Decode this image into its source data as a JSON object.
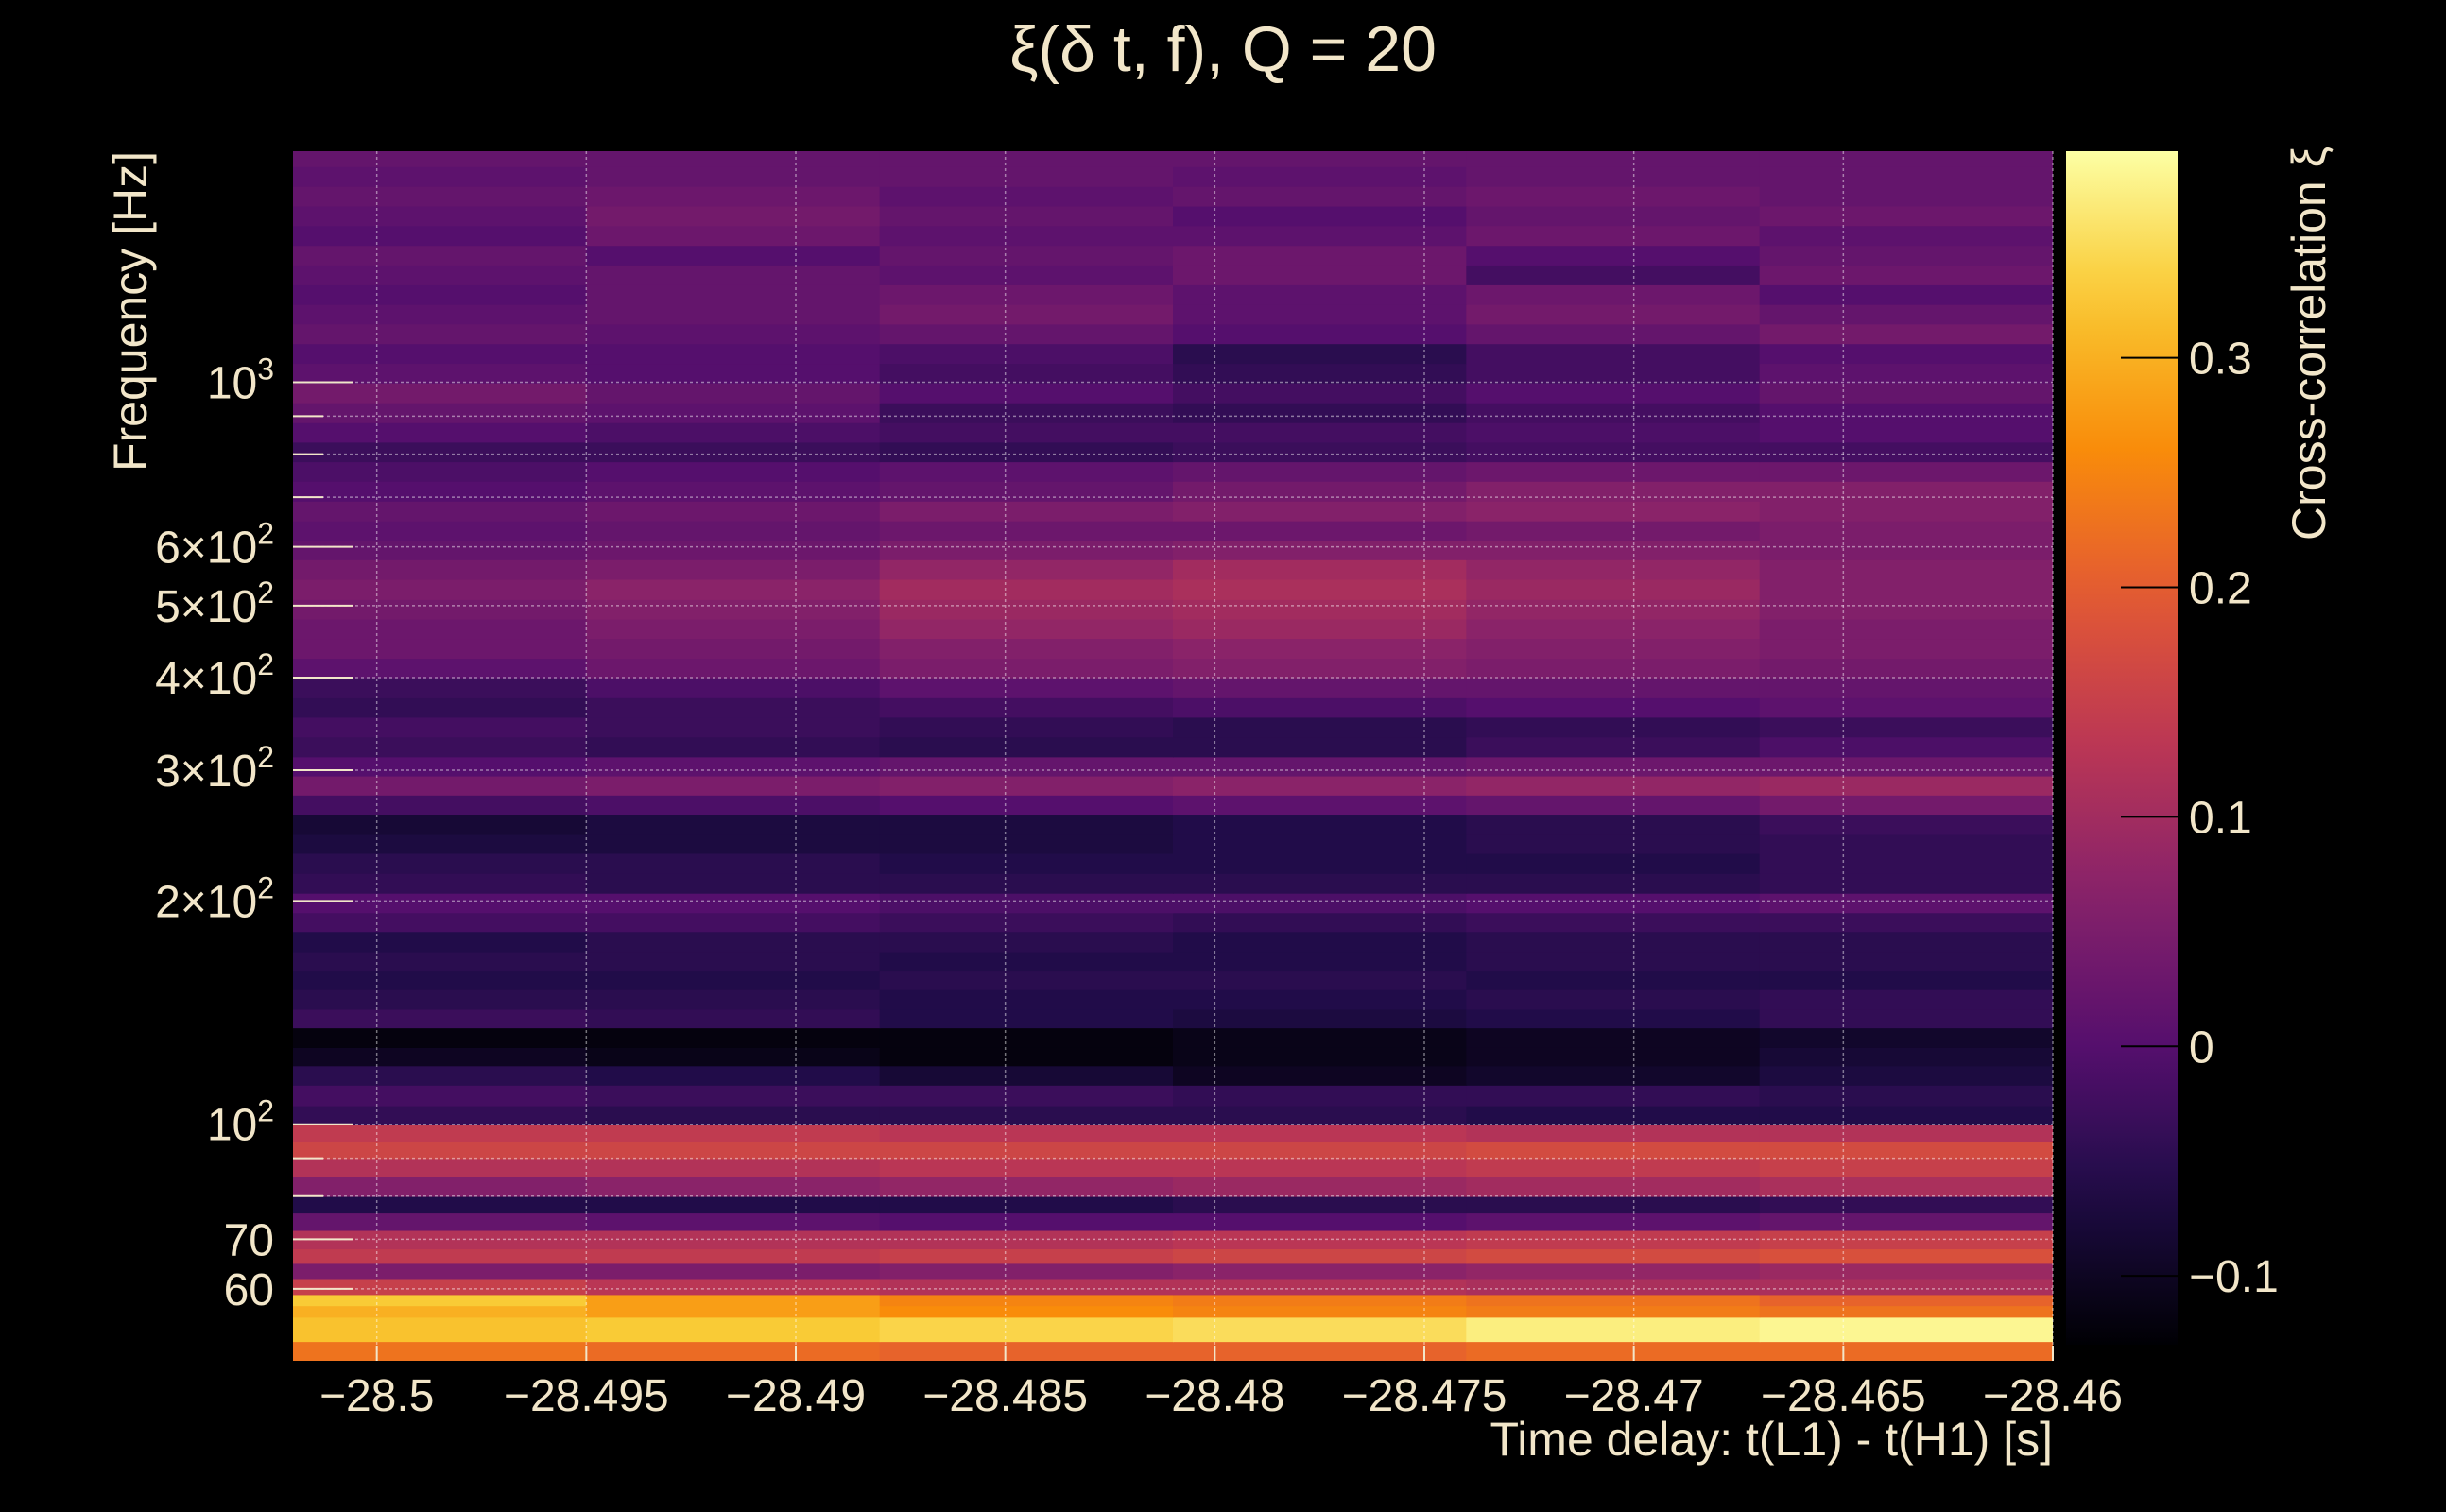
{
  "chart_data": {
    "type": "heatmap",
    "title": "ξ(δ t, f), Q = 20",
    "xlabel": "Time delay: t(L1) - t(H1) [s]",
    "ylabel": "Frequency [Hz]",
    "colorbar_label": "Cross-correlation ξ",
    "xlim": [
      -28.502,
      -28.46
    ],
    "ylim": [
      48,
      2048
    ],
    "yscale": "log",
    "grid": true,
    "x_ticks": [
      {
        "value": -28.5,
        "label": "−28.5"
      },
      {
        "value": -28.495,
        "label": "−28.495"
      },
      {
        "value": -28.49,
        "label": "−28.49"
      },
      {
        "value": -28.485,
        "label": "−28.485"
      },
      {
        "value": -28.48,
        "label": "−28.48"
      },
      {
        "value": -28.475,
        "label": "−28.475"
      },
      {
        "value": -28.47,
        "label": "−28.47"
      },
      {
        "value": -28.465,
        "label": "−28.465"
      },
      {
        "value": -28.46,
        "label": "−28.46"
      }
    ],
    "y_ticks": [
      {
        "value": 60,
        "label": "60"
      },
      {
        "value": 70,
        "label": "70"
      },
      {
        "value": 100,
        "label": "10",
        "sup": "2"
      },
      {
        "value": 200,
        "label": "2×10",
        "sup": "2"
      },
      {
        "value": 300,
        "label": "3×10",
        "sup": "2"
      },
      {
        "value": 400,
        "label": "4×10",
        "sup": "2"
      },
      {
        "value": 500,
        "label": "5×10",
        "sup": "2"
      },
      {
        "value": 600,
        "label": "6×10",
        "sup": "2"
      },
      {
        "value": 1000,
        "label": "10",
        "sup": "3"
      }
    ],
    "y_minor_ticks": [
      80,
      90,
      700,
      800,
      900
    ],
    "color_ticks": [
      {
        "value": -0.1,
        "label": "−0.1"
      },
      {
        "value": 0,
        "label": "0"
      },
      {
        "value": 0.1,
        "label": "0.1"
      },
      {
        "value": 0.2,
        "label": "0.2"
      },
      {
        "value": 0.3,
        "label": "0.3"
      }
    ],
    "clim": [
      -0.13,
      0.39
    ],
    "colormap": "inferno",
    "bands": [
      {
        "f_low": 48,
        "f_high": 51,
        "values": [
          0.23,
          0.22,
          0.21,
          0.21,
          0.22,
          0.22
        ]
      },
      {
        "f_low": 51,
        "f_high": 55,
        "values": [
          0.32,
          0.33,
          0.34,
          0.35,
          0.37,
          0.38
        ]
      },
      {
        "f_low": 55,
        "f_high": 57,
        "values": [
          0.3,
          0.28,
          0.26,
          0.25,
          0.24,
          0.23
        ]
      },
      {
        "f_low": 57,
        "f_high": 59,
        "values": [
          0.33,
          0.28,
          0.25,
          0.24,
          0.23,
          0.21
        ]
      },
      {
        "f_low": 59,
        "f_high": 62,
        "values": [
          0.15,
          0.13,
          0.12,
          0.12,
          0.11,
          0.11
        ]
      },
      {
        "f_low": 62,
        "f_high": 65,
        "values": [
          0.05,
          0.05,
          0.06,
          0.07,
          0.08,
          0.09
        ]
      },
      {
        "f_low": 65,
        "f_high": 68,
        "values": [
          0.14,
          0.14,
          0.15,
          0.16,
          0.17,
          0.18
        ]
      },
      {
        "f_low": 68,
        "f_high": 72,
        "values": [
          0.12,
          0.12,
          0.12,
          0.13,
          0.14,
          0.15
        ]
      },
      {
        "f_low": 72,
        "f_high": 76,
        "values": [
          0.02,
          0.01,
          0.0,
          0.0,
          0.01,
          0.02
        ]
      },
      {
        "f_low": 76,
        "f_high": 80,
        "values": [
          -0.06,
          -0.06,
          -0.06,
          -0.05,
          -0.05,
          -0.04
        ]
      },
      {
        "f_low": 80,
        "f_high": 85,
        "values": [
          0.06,
          0.07,
          0.08,
          0.09,
          0.1,
          0.11
        ]
      },
      {
        "f_low": 85,
        "f_high": 90,
        "values": [
          0.12,
          0.12,
          0.13,
          0.13,
          0.14,
          0.15
        ]
      },
      {
        "f_low": 90,
        "f_high": 95,
        "values": [
          0.16,
          0.16,
          0.16,
          0.16,
          0.17,
          0.17
        ]
      },
      {
        "f_low": 95,
        "f_high": 100,
        "values": [
          0.14,
          0.14,
          0.13,
          0.13,
          0.12,
          0.12
        ]
      },
      {
        "f_low": 100,
        "f_high": 106,
        "values": [
          -0.04,
          -0.05,
          -0.05,
          -0.05,
          -0.06,
          -0.06
        ]
      },
      {
        "f_low": 106,
        "f_high": 113,
        "values": [
          -0.02,
          -0.03,
          -0.03,
          -0.04,
          -0.04,
          -0.05
        ]
      },
      {
        "f_low": 113,
        "f_high": 120,
        "values": [
          -0.05,
          -0.06,
          -0.08,
          -0.1,
          -0.09,
          -0.07
        ]
      },
      {
        "f_low": 120,
        "f_high": 127,
        "values": [
          -0.1,
          -0.11,
          -0.12,
          -0.11,
          -0.1,
          -0.08
        ]
      },
      {
        "f_low": 127,
        "f_high": 135,
        "values": [
          -0.12,
          -0.12,
          -0.12,
          -0.11,
          -0.1,
          -0.09
        ]
      },
      {
        "f_low": 135,
        "f_high": 143,
        "values": [
          -0.03,
          -0.04,
          -0.06,
          -0.07,
          -0.06,
          -0.04
        ]
      },
      {
        "f_low": 143,
        "f_high": 152,
        "values": [
          -0.05,
          -0.05,
          -0.06,
          -0.06,
          -0.05,
          -0.04
        ]
      },
      {
        "f_low": 152,
        "f_high": 161,
        "values": [
          -0.06,
          -0.06,
          -0.05,
          -0.05,
          -0.06,
          -0.06
        ]
      },
      {
        "f_low": 161,
        "f_high": 171,
        "values": [
          -0.05,
          -0.05,
          -0.06,
          -0.06,
          -0.05,
          -0.05
        ]
      },
      {
        "f_low": 171,
        "f_high": 182,
        "values": [
          -0.06,
          -0.05,
          -0.05,
          -0.06,
          -0.05,
          -0.05
        ]
      },
      {
        "f_low": 182,
        "f_high": 193,
        "values": [
          -0.02,
          -0.02,
          -0.03,
          -0.04,
          -0.03,
          -0.03
        ]
      },
      {
        "f_low": 193,
        "f_high": 205,
        "values": [
          0.0,
          0.0,
          -0.01,
          -0.01,
          0.0,
          0.01
        ]
      },
      {
        "f_low": 205,
        "f_high": 218,
        "values": [
          -0.04,
          -0.05,
          -0.05,
          -0.05,
          -0.05,
          -0.04
        ]
      },
      {
        "f_low": 218,
        "f_high": 232,
        "values": [
          -0.05,
          -0.05,
          -0.06,
          -0.06,
          -0.06,
          -0.04
        ]
      },
      {
        "f_low": 232,
        "f_high": 246,
        "values": [
          -0.07,
          -0.07,
          -0.07,
          -0.06,
          -0.05,
          -0.04
        ]
      },
      {
        "f_low": 246,
        "f_high": 262,
        "values": [
          -0.08,
          -0.07,
          -0.07,
          -0.06,
          -0.05,
          -0.03
        ]
      },
      {
        "f_low": 262,
        "f_high": 278,
        "values": [
          -0.02,
          -0.01,
          0.0,
          0.01,
          0.02,
          0.04
        ]
      },
      {
        "f_low": 278,
        "f_high": 295,
        "values": [
          0.04,
          0.05,
          0.06,
          0.07,
          0.08,
          0.09
        ]
      },
      {
        "f_low": 295,
        "f_high": 313,
        "values": [
          0.0,
          0.01,
          0.02,
          0.02,
          0.03,
          0.03
        ]
      },
      {
        "f_low": 313,
        "f_high": 333,
        "values": [
          -0.03,
          -0.04,
          -0.05,
          -0.05,
          -0.03,
          -0.01
        ]
      },
      {
        "f_low": 333,
        "f_high": 354,
        "values": [
          -0.02,
          -0.03,
          -0.04,
          -0.05,
          -0.04,
          -0.03
        ]
      },
      {
        "f_low": 354,
        "f_high": 376,
        "values": [
          -0.04,
          -0.03,
          -0.02,
          -0.01,
          0.0,
          0.01
        ]
      },
      {
        "f_low": 376,
        "f_high": 400,
        "values": [
          -0.03,
          -0.01,
          0.01,
          0.02,
          0.02,
          0.02
        ]
      },
      {
        "f_low": 400,
        "f_high": 425,
        "values": [
          0.01,
          0.03,
          0.05,
          0.06,
          0.05,
          0.04
        ]
      },
      {
        "f_low": 425,
        "f_high": 452,
        "values": [
          0.03,
          0.04,
          0.06,
          0.07,
          0.06,
          0.05
        ]
      },
      {
        "f_low": 452,
        "f_high": 480,
        "values": [
          0.03,
          0.05,
          0.08,
          0.09,
          0.07,
          0.05
        ]
      },
      {
        "f_low": 480,
        "f_high": 510,
        "values": [
          0.04,
          0.06,
          0.09,
          0.1,
          0.08,
          0.06
        ]
      },
      {
        "f_low": 510,
        "f_high": 543,
        "values": [
          0.05,
          0.07,
          0.1,
          0.11,
          0.09,
          0.06
        ]
      },
      {
        "f_low": 543,
        "f_high": 577,
        "values": [
          0.04,
          0.05,
          0.08,
          0.1,
          0.08,
          0.06
        ]
      },
      {
        "f_low": 577,
        "f_high": 613,
        "values": [
          0.02,
          0.03,
          0.05,
          0.06,
          0.06,
          0.05
        ]
      },
      {
        "f_low": 613,
        "f_high": 651,
        "values": [
          0.01,
          0.02,
          0.03,
          0.03,
          0.04,
          0.05
        ]
      },
      {
        "f_low": 651,
        "f_high": 692,
        "values": [
          0.02,
          0.03,
          0.05,
          0.06,
          0.07,
          0.06
        ]
      },
      {
        "f_low": 692,
        "f_high": 736,
        "values": [
          0.0,
          0.01,
          0.02,
          0.04,
          0.06,
          0.06
        ]
      },
      {
        "f_low": 736,
        "f_high": 782,
        "values": [
          -0.01,
          0.0,
          0.01,
          0.02,
          0.03,
          0.03
        ]
      },
      {
        "f_low": 782,
        "f_high": 831,
        "values": [
          -0.03,
          -0.03,
          -0.04,
          -0.03,
          -0.02,
          -0.02
        ]
      },
      {
        "f_low": 831,
        "f_high": 883,
        "values": [
          0.0,
          -0.01,
          -0.02,
          -0.02,
          -0.01,
          0.0
        ]
      },
      {
        "f_low": 883,
        "f_high": 939,
        "values": [
          0.02,
          0.01,
          -0.03,
          -0.04,
          -0.02,
          0.0
        ]
      },
      {
        "f_low": 939,
        "f_high": 998,
        "values": [
          0.04,
          0.02,
          0.0,
          -0.02,
          0.0,
          0.02
        ]
      },
      {
        "f_low": 998,
        "f_high": 1061,
        "values": [
          0.01,
          0.0,
          -0.02,
          -0.04,
          -0.02,
          0.01
        ]
      },
      {
        "f_low": 1061,
        "f_high": 1128,
        "values": [
          0.0,
          0.0,
          -0.01,
          -0.05,
          -0.02,
          0.0
        ]
      },
      {
        "f_low": 1128,
        "f_high": 1199,
        "values": [
          0.02,
          0.01,
          0.02,
          0.0,
          0.02,
          0.04
        ]
      },
      {
        "f_low": 1199,
        "f_high": 1274,
        "values": [
          0.01,
          0.02,
          0.04,
          0.01,
          0.04,
          0.02
        ]
      },
      {
        "f_low": 1274,
        "f_high": 1354,
        "values": [
          0.0,
          0.02,
          0.03,
          0.01,
          0.03,
          0.0
        ]
      },
      {
        "f_low": 1354,
        "f_high": 1440,
        "values": [
          0.01,
          0.02,
          0.01,
          0.03,
          -0.02,
          0.03
        ]
      },
      {
        "f_low": 1440,
        "f_high": 1530,
        "values": [
          0.02,
          0.0,
          0.02,
          0.03,
          0.0,
          0.02
        ]
      },
      {
        "f_low": 1530,
        "f_high": 1627,
        "values": [
          0.0,
          0.03,
          0.01,
          0.01,
          0.03,
          0.01
        ]
      },
      {
        "f_low": 1627,
        "f_high": 1729,
        "values": [
          0.01,
          0.04,
          0.02,
          0.0,
          0.02,
          0.03
        ]
      },
      {
        "f_low": 1729,
        "f_high": 1838,
        "values": [
          0.02,
          0.03,
          0.01,
          0.02,
          0.03,
          0.02
        ]
      },
      {
        "f_low": 1838,
        "f_high": 1954,
        "values": [
          0.01,
          0.02,
          0.02,
          0.01,
          0.02,
          0.02
        ]
      },
      {
        "f_low": 1954,
        "f_high": 2048,
        "values": [
          0.02,
          0.02,
          0.02,
          0.02,
          0.02,
          0.02
        ]
      }
    ]
  }
}
